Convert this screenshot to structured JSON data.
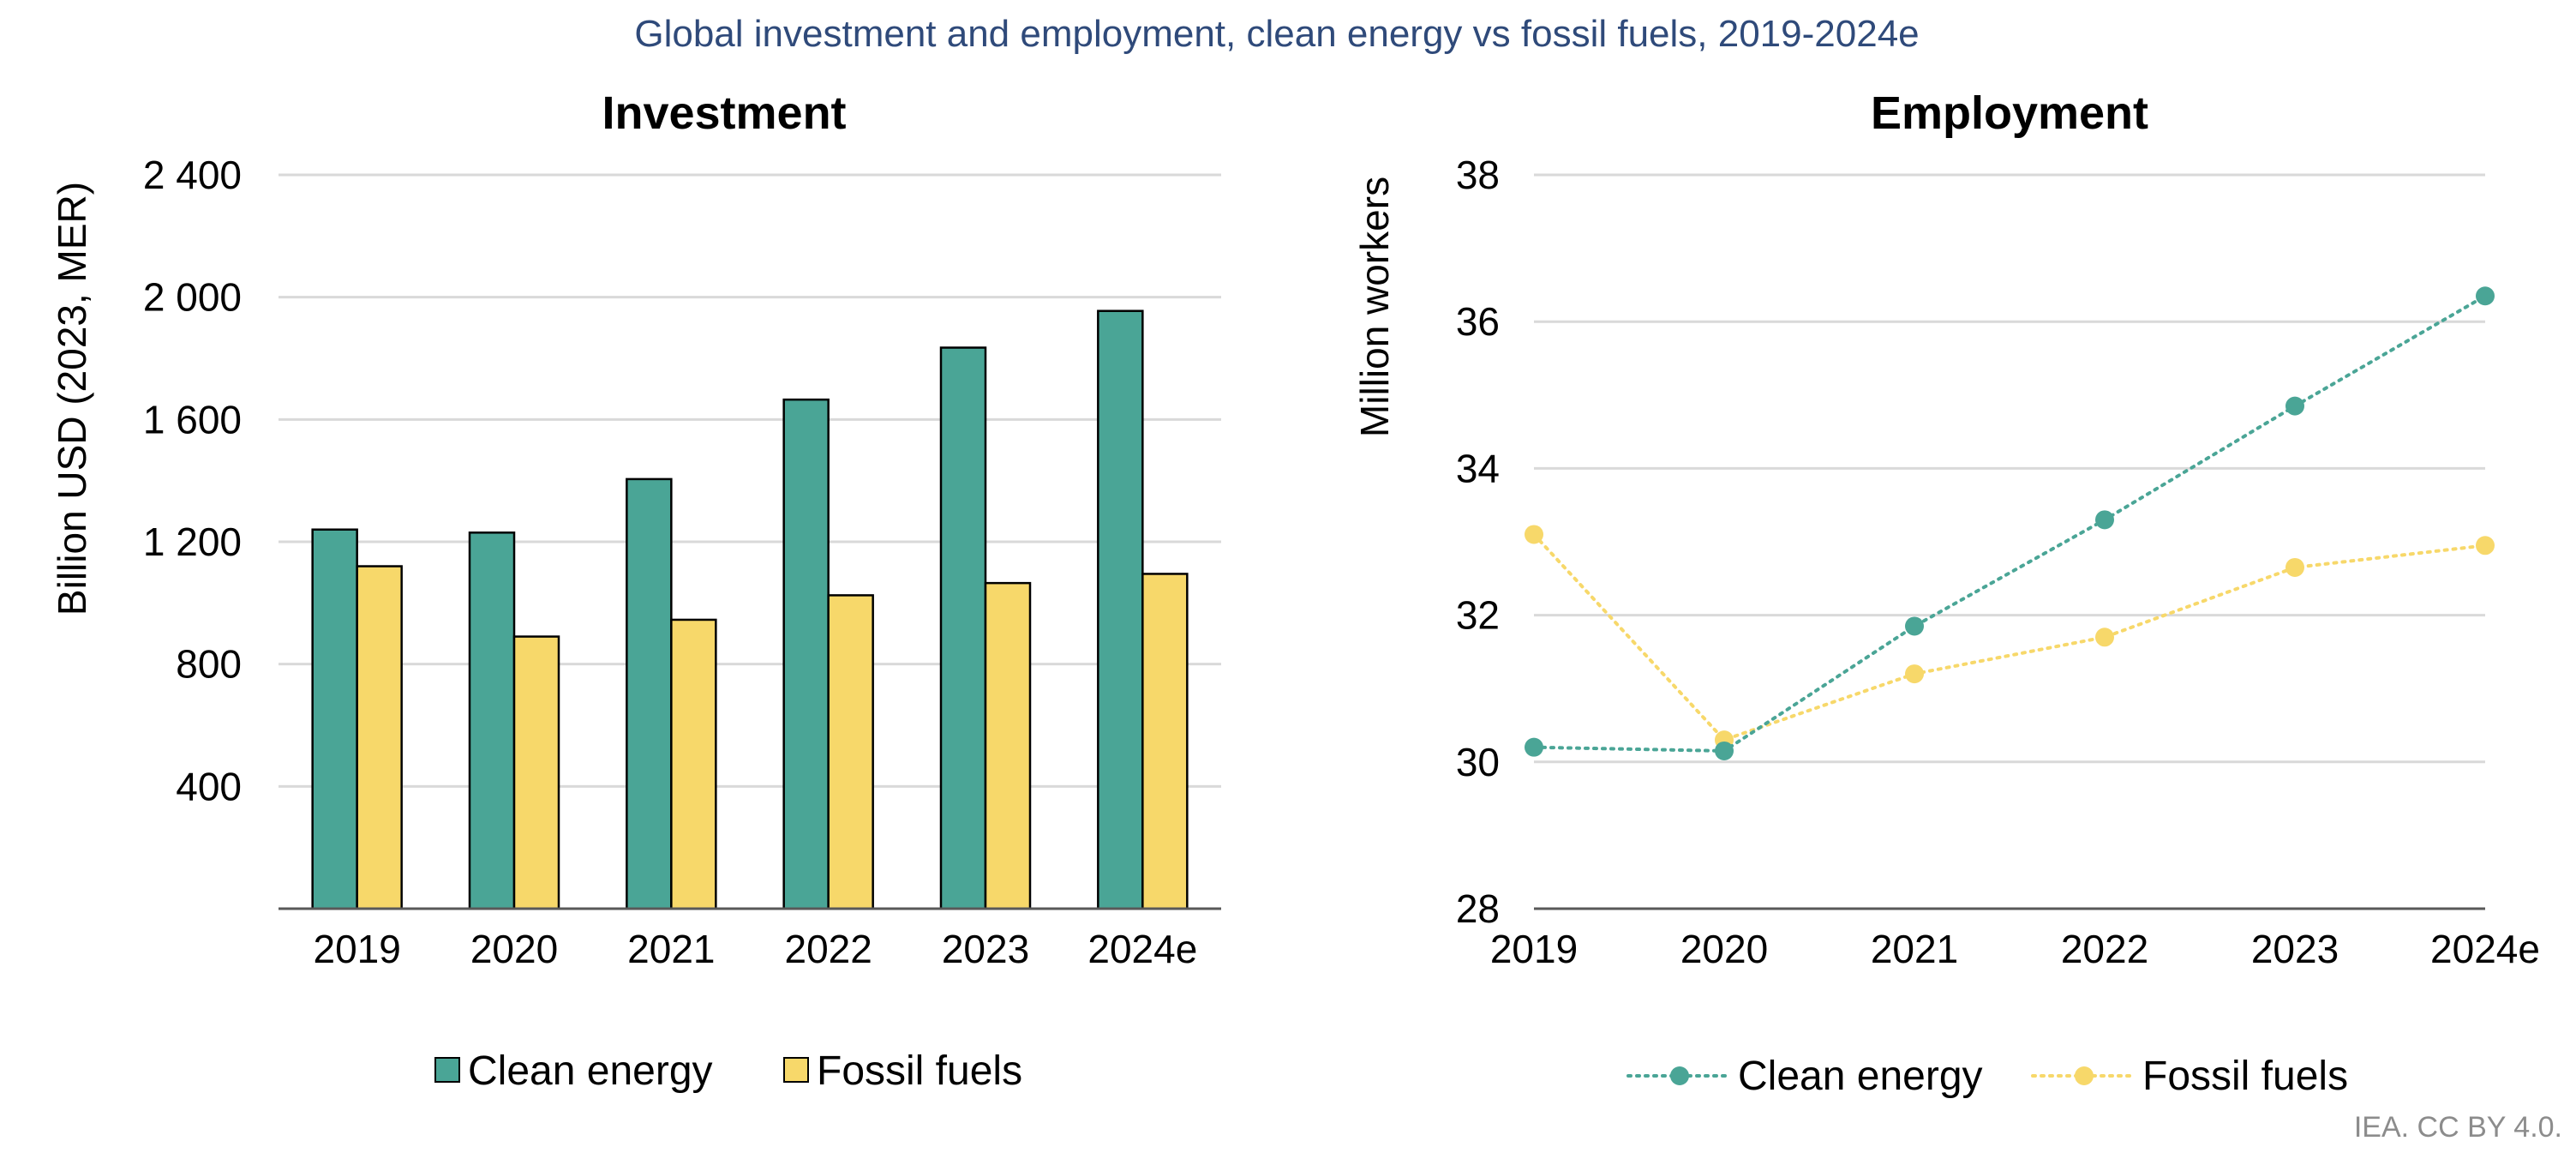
{
  "figure": {
    "title": "Global investment and employment, clean energy vs fossil fuels, 2019-2024e",
    "credit": "IEA. CC BY 4.0."
  },
  "colors": {
    "title": "#2f4a7a",
    "clean_energy": "#4aa596",
    "fossil_fuels": "#f7d86a",
    "grid": "#d9d9d9",
    "axis": "#595959",
    "credit": "#8c8c8c",
    "bar_outline": "#000000"
  },
  "chart_data": [
    {
      "type": "bar",
      "title": "Investment",
      "ylabel": "Billion USD (2023, MER)",
      "xlabel": "",
      "categories": [
        "2019",
        "2020",
        "2021",
        "2022",
        "2023",
        "2024e"
      ],
      "series": [
        {
          "name": "Clean energy",
          "values": [
            1240,
            1230,
            1405,
            1665,
            1835,
            1955
          ]
        },
        {
          "name": "Fossil fuels",
          "values": [
            1120,
            890,
            945,
            1025,
            1065,
            1095
          ]
        }
      ],
      "ylim": [
        0,
        2400
      ],
      "yticks": [
        400,
        800,
        1200,
        1600,
        2000,
        2400
      ],
      "ytick_labels": [
        "400",
        "800",
        "1 200",
        "1 600",
        "2 000",
        "2 400"
      ],
      "grid": true,
      "legend": "bottom"
    },
    {
      "type": "line",
      "title": "Employment",
      "ylabel": "Million workers",
      "xlabel": "",
      "categories": [
        "2019",
        "2020",
        "2021",
        "2022",
        "2023",
        "2024e"
      ],
      "series": [
        {
          "name": "Clean energy",
          "values": [
            30.2,
            30.15,
            31.85,
            33.3,
            34.85,
            36.35
          ]
        },
        {
          "name": "Fossil fuels",
          "values": [
            33.1,
            30.3,
            31.2,
            31.7,
            32.65,
            32.95
          ]
        }
      ],
      "ylim": [
        28,
        38
      ],
      "yticks": [
        28,
        30,
        32,
        34,
        36,
        38
      ],
      "ytick_labels": [
        "28",
        "30",
        "32",
        "34",
        "36",
        "38"
      ],
      "line_style": "dotted",
      "markers": true,
      "grid": true,
      "legend": "bottom"
    }
  ]
}
